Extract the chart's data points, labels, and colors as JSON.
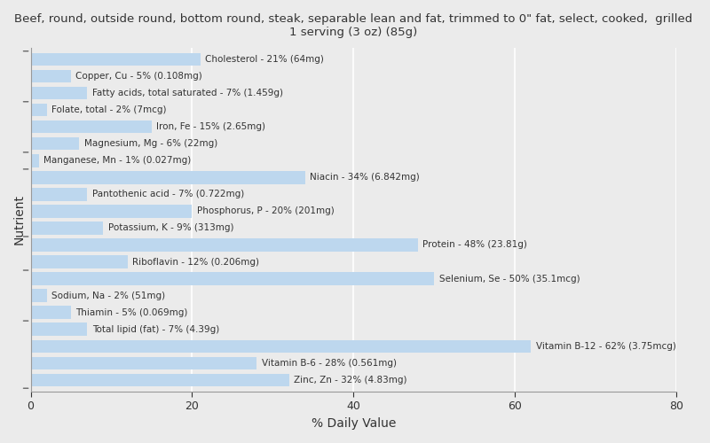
{
  "title": "Beef, round, outside round, bottom round, steak, separable lean and fat, trimmed to 0\" fat, select, cooked,  grilled\n1 serving (3 oz) (85g)",
  "xlabel": "% Daily Value",
  "ylabel": "Nutrient",
  "bar_color": "#bdd7ee",
  "background_color": "#ebebeb",
  "plot_background": "#ebebeb",
  "xlim": [
    0,
    80
  ],
  "xticks": [
    0,
    20,
    40,
    60,
    80
  ],
  "nutrients": [
    {
      "label": "Cholesterol - 21% (64mg)",
      "value": 21
    },
    {
      "label": "Copper, Cu - 5% (0.108mg)",
      "value": 5
    },
    {
      "label": "Fatty acids, total saturated - 7% (1.459g)",
      "value": 7
    },
    {
      "label": "Folate, total - 2% (7mcg)",
      "value": 2
    },
    {
      "label": "Iron, Fe - 15% (2.65mg)",
      "value": 15
    },
    {
      "label": "Magnesium, Mg - 6% (22mg)",
      "value": 6
    },
    {
      "label": "Manganese, Mn - 1% (0.027mg)",
      "value": 1
    },
    {
      "label": "Niacin - 34% (6.842mg)",
      "value": 34
    },
    {
      "label": "Pantothenic acid - 7% (0.722mg)",
      "value": 7
    },
    {
      "label": "Phosphorus, P - 20% (201mg)",
      "value": 20
    },
    {
      "label": "Potassium, K - 9% (313mg)",
      "value": 9
    },
    {
      "label": "Protein - 48% (23.81g)",
      "value": 48
    },
    {
      "label": "Riboflavin - 12% (0.206mg)",
      "value": 12
    },
    {
      "label": "Selenium, Se - 50% (35.1mcg)",
      "value": 50
    },
    {
      "label": "Sodium, Na - 2% (51mg)",
      "value": 2
    },
    {
      "label": "Thiamin - 5% (0.069mg)",
      "value": 5
    },
    {
      "label": "Total lipid (fat) - 7% (4.39g)",
      "value": 7
    },
    {
      "label": "Vitamin B-12 - 62% (3.75mcg)",
      "value": 62
    },
    {
      "label": "Vitamin B-6 - 28% (0.561mg)",
      "value": 28
    },
    {
      "label": "Zinc, Zn - 32% (4.83mg)",
      "value": 32
    }
  ],
  "group_ticks": [
    19,
    16,
    13,
    12,
    8,
    6,
    3
  ],
  "label_fontsize": 7.5,
  "title_fontsize": 9.5
}
